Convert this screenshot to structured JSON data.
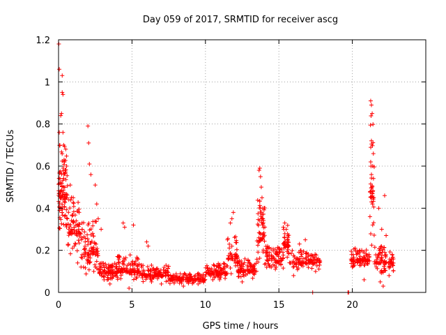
{
  "chart_data": {
    "type": "scatter",
    "title": "Day 059 of 2017, SRMTID for receiver ascg",
    "xlabel": "GPS time / hours",
    "ylabel": "SRMTID / TECUs",
    "xlim": [
      0,
      25
    ],
    "ylim": [
      0,
      1.2
    ],
    "x_ticks": [
      0,
      5,
      10,
      15,
      20
    ],
    "x_tick_labels": [
      "0",
      "5",
      "10",
      "15",
      "20"
    ],
    "y_ticks": [
      0,
      0.2,
      0.4,
      0.6,
      0.8,
      1.0,
      1.2
    ],
    "y_tick_labels": [
      "0",
      "0.2",
      "0.4",
      "0.6",
      "0.8",
      "1",
      "1.2"
    ],
    "grid": true,
    "marker": "+",
    "colors": {
      "series": "#ff0000",
      "grid": "#a0a0a0",
      "axes": "#000000"
    },
    "series": [
      {
        "name": "SRMTID",
        "segments": [
          {
            "x_start": 0.0,
            "x_end": 0.6,
            "base": 0.45,
            "spread": 0.25,
            "n": 90
          },
          {
            "x_start": 0.6,
            "x_end": 1.5,
            "base": 0.28,
            "spread": 0.18,
            "n": 70
          },
          {
            "x_start": 1.5,
            "x_end": 2.7,
            "base": 0.18,
            "spread": 0.16,
            "n": 90
          },
          {
            "x_start": 2.7,
            "x_end": 4.0,
            "base": 0.09,
            "spread": 0.05,
            "n": 90
          },
          {
            "x_start": 4.0,
            "x_end": 5.5,
            "base": 0.1,
            "spread": 0.08,
            "n": 100
          },
          {
            "x_start": 5.5,
            "x_end": 7.5,
            "base": 0.08,
            "spread": 0.05,
            "n": 120
          },
          {
            "x_start": 7.5,
            "x_end": 10.0,
            "base": 0.06,
            "spread": 0.03,
            "n": 140
          },
          {
            "x_start": 10.0,
            "x_end": 11.5,
            "base": 0.09,
            "spread": 0.05,
            "n": 90
          },
          {
            "x_start": 11.5,
            "x_end": 12.2,
            "base": 0.16,
            "spread": 0.12,
            "n": 50
          },
          {
            "x_start": 12.2,
            "x_end": 13.5,
            "base": 0.1,
            "spread": 0.06,
            "n": 90
          },
          {
            "x_start": 13.5,
            "x_end": 14.1,
            "base": 0.25,
            "spread": 0.2,
            "n": 60
          },
          {
            "x_start": 14.1,
            "x_end": 15.3,
            "base": 0.15,
            "spread": 0.07,
            "n": 80
          },
          {
            "x_start": 15.3,
            "x_end": 15.7,
            "base": 0.22,
            "spread": 0.1,
            "n": 40
          },
          {
            "x_start": 15.7,
            "x_end": 17.8,
            "base": 0.14,
            "spread": 0.06,
            "n": 110
          },
          {
            "x_start": 19.9,
            "x_end": 21.2,
            "base": 0.15,
            "spread": 0.06,
            "n": 90
          },
          {
            "x_start": 21.2,
            "x_end": 21.5,
            "base": 0.45,
            "spread": 0.4,
            "n": 40
          },
          {
            "x_start": 21.5,
            "x_end": 22.8,
            "base": 0.14,
            "spread": 0.08,
            "n": 90
          }
        ],
        "points": [
          [
            0.02,
            1.18
          ],
          [
            0.05,
            1.06
          ],
          [
            0.15,
            0.84
          ],
          [
            0.2,
            0.85
          ],
          [
            0.25,
            1.03
          ],
          [
            0.25,
            0.95
          ],
          [
            0.3,
            0.94
          ],
          [
            0.3,
            0.76
          ],
          [
            0.35,
            0.7
          ],
          [
            0.45,
            0.58
          ],
          [
            0.55,
            0.6
          ],
          [
            0.5,
            0.32
          ],
          [
            0.6,
            0.35
          ],
          [
            0.8,
            0.51
          ],
          [
            0.95,
            0.21
          ],
          [
            1.0,
            0.45
          ],
          [
            1.1,
            0.28
          ],
          [
            1.4,
            0.38
          ],
          [
            1.6,
            0.33
          ],
          [
            1.8,
            0.21
          ],
          [
            2.0,
            0.79
          ],
          [
            2.05,
            0.71
          ],
          [
            2.1,
            0.61
          ],
          [
            2.2,
            0.56
          ],
          [
            2.5,
            0.51
          ],
          [
            2.6,
            0.42
          ],
          [
            2.7,
            0.35
          ],
          [
            2.9,
            0.3
          ],
          [
            4.4,
            0.33
          ],
          [
            4.5,
            0.31
          ],
          [
            5.1,
            0.32
          ],
          [
            6.0,
            0.24
          ],
          [
            6.1,
            0.22
          ],
          [
            11.5,
            0.25
          ],
          [
            11.7,
            0.33
          ],
          [
            11.8,
            0.35
          ],
          [
            11.9,
            0.38
          ],
          [
            13.65,
            0.58
          ],
          [
            13.7,
            0.59
          ],
          [
            13.75,
            0.55
          ],
          [
            13.8,
            0.5
          ],
          [
            13.85,
            0.45
          ],
          [
            13.9,
            0.4
          ],
          [
            15.3,
            0.31
          ],
          [
            15.4,
            0.33
          ],
          [
            15.5,
            0.3
          ],
          [
            16.4,
            0.23
          ],
          [
            16.8,
            0.25
          ],
          [
            17.3,
            0.0
          ],
          [
            19.7,
            0.0
          ],
          [
            19.75,
            0.0
          ],
          [
            21.25,
            0.91
          ],
          [
            21.3,
            0.89
          ],
          [
            21.35,
            0.85
          ],
          [
            21.3,
            0.72
          ],
          [
            21.25,
            0.62
          ],
          [
            21.3,
            0.56
          ],
          [
            21.25,
            0.48
          ],
          [
            21.3,
            0.43
          ],
          [
            21.2,
            0.36
          ],
          [
            21.8,
            0.4
          ],
          [
            22.2,
            0.46
          ],
          [
            22.0,
            0.3
          ],
          [
            22.3,
            0.27
          ],
          [
            22.1,
            0.03
          ],
          [
            21.9,
            0.05
          ],
          [
            0.05,
            0.76
          ],
          [
            0.1,
            0.52
          ],
          [
            0.12,
            0.48
          ],
          [
            0.2,
            0.4
          ],
          [
            0.4,
            0.62
          ],
          [
            0.7,
            0.44
          ],
          [
            0.9,
            0.3
          ],
          [
            1.3,
            0.14
          ],
          [
            1.7,
            0.12
          ],
          [
            2.4,
            0.1
          ],
          [
            3.1,
            0.06
          ],
          [
            3.5,
            0.04
          ],
          [
            4.8,
            0.02
          ],
          [
            7.0,
            0.04
          ],
          [
            8.5,
            0.03
          ],
          [
            9.5,
            0.04
          ],
          [
            10.5,
            0.06
          ],
          [
            12.5,
            0.05
          ],
          [
            14.5,
            0.12
          ],
          [
            16.0,
            0.08
          ],
          [
            17.5,
            0.1
          ],
          [
            20.0,
            0.12
          ],
          [
            20.5,
            0.2
          ],
          [
            20.8,
            0.06
          ],
          [
            22.5,
            0.08
          ]
        ]
      }
    ]
  }
}
